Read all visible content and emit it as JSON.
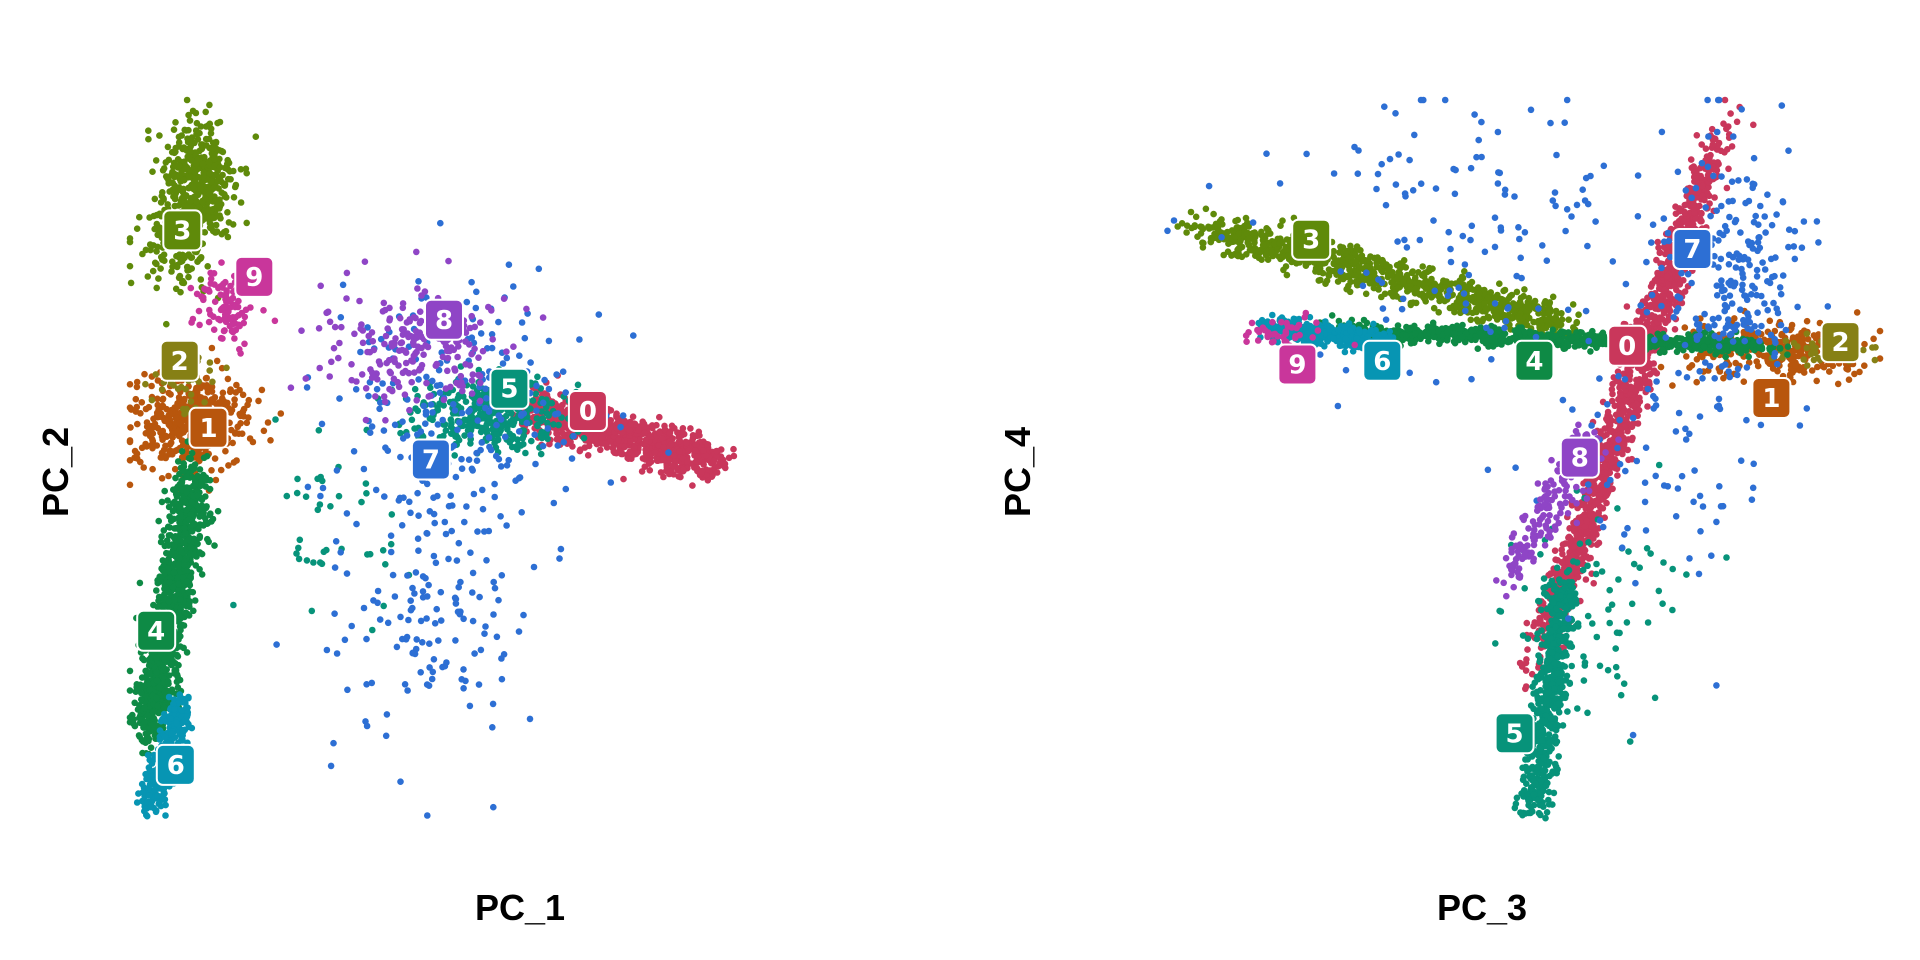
{
  "chart_data": [
    {
      "type": "scatter",
      "title": "",
      "xlabel": "PC_1",
      "ylabel": "PC_2",
      "xlim": [
        -20,
        40
      ],
      "ylim": [
        -20,
        20
      ],
      "grid": false,
      "legend": "none",
      "series": [
        {
          "cluster": "0",
          "color": "#C9375B",
          "label_at": [
            15.0,
            3.3
          ],
          "clouds": [
            {
              "x0": 10.8,
              "y0": 3.3,
              "x1": 25.0,
              "y1": 0.5,
              "w": 1.2,
              "n": 900
            }
          ]
        },
        {
          "cluster": "1",
          "color": "#B8560D",
          "label_at": [
            -14.0,
            2.4
          ],
          "clouds": [
            {
              "cx": -15.2,
              "cy": 2.7,
              "sx": 2.2,
              "sy": 1.2,
              "n": 450
            }
          ]
        },
        {
          "cluster": "2",
          "color": "#868015",
          "label_at": [
            -16.2,
            6.0
          ],
          "clouds": [
            {
              "cx": -15.6,
              "cy": 5.2,
              "sx": 1.2,
              "sy": 1.0,
              "n": 40
            }
          ]
        },
        {
          "cluster": "3",
          "color": "#5F8A0A",
          "label_at": [
            -16.0,
            13.0
          ],
          "clouds": [
            {
              "cx": -14.8,
              "cy": 15.5,
              "sx": 1.4,
              "sy": 1.8,
              "n": 400
            },
            {
              "cx": -16.5,
              "cy": 12.5,
              "sx": 1.5,
              "sy": 1.4,
              "n": 150
            }
          ]
        },
        {
          "cluster": "4",
          "color": "#0E8A45",
          "label_at": [
            -18.0,
            -8.5
          ],
          "clouds": [
            {
              "x0": -15.0,
              "y0": 0.0,
              "x1": -18.5,
              "y1": -14.0,
              "w": 1.5,
              "n": 1000
            }
          ]
        },
        {
          "cluster": "5",
          "color": "#07937A",
          "label_at": [
            9.0,
            4.5
          ],
          "clouds": [
            {
              "cx": 7.5,
              "cy": 3.2,
              "sx": 3.0,
              "sy": 0.9,
              "n": 350
            },
            {
              "cx": -4.0,
              "cy": -3.5,
              "sx": 3.0,
              "sy": 3.0,
              "n": 40
            }
          ]
        },
        {
          "cluster": "6",
          "color": "#0795B3",
          "label_at": [
            -16.5,
            -15.7
          ],
          "clouds": [
            {
              "x0": -16.0,
              "y0": -12.5,
              "x1": -18.5,
              "y1": -18.0,
              "w": 1.0,
              "n": 350
            }
          ]
        },
        {
          "cluster": "7",
          "color": "#2D6FD4",
          "label_at": [
            3.0,
            0.7
          ],
          "clouds": [
            {
              "cx": 5.5,
              "cy": 3.5,
              "sx": 5.0,
              "sy": 3.2,
              "n": 220
            },
            {
              "cx": 3.0,
              "cy": -6.5,
              "sx": 4.0,
              "sy": 4.0,
              "n": 160
            }
          ]
        },
        {
          "cluster": "8",
          "color": "#8F45C6",
          "label_at": [
            4.0,
            8.2
          ],
          "clouds": [
            {
              "cx": 1.5,
              "cy": 6.8,
              "sx": 3.5,
              "sy": 1.6,
              "n": 220
            }
          ]
        },
        {
          "cluster": "9",
          "color": "#C9369B",
          "label_at": [
            -10.5,
            10.5
          ],
          "clouds": [
            {
              "cx": -12.5,
              "cy": 9.0,
              "sx": 1.2,
              "sy": 1.0,
              "n": 110
            }
          ]
        }
      ]
    },
    {
      "type": "scatter",
      "title": "",
      "xlabel": "PC_3",
      "ylabel": "PC_4",
      "xlim": [
        -20,
        20
      ],
      "ylim": [
        -20,
        20
      ],
      "grid": false,
      "legend": "none",
      "series": [
        {
          "cluster": "0",
          "color": "#C9375B",
          "label_at": [
            7.2,
            6.8
          ],
          "clouds": [
            {
              "x0": 3.0,
              "y0": -9.0,
              "x1": 11.5,
              "y1": 17.0,
              "w": 0.9,
              "n": 1300
            }
          ]
        },
        {
          "cluster": "1",
          "color": "#B8560D",
          "label_at": [
            14.5,
            4.0
          ],
          "clouds": [
            {
              "cx": 15.0,
              "cy": 6.5,
              "sx": 2.2,
              "sy": 0.8,
              "n": 260
            }
          ]
        },
        {
          "cluster": "2",
          "color": "#868015",
          "label_at": [
            18.0,
            7.0
          ],
          "clouds": [
            {
              "cx": 17.5,
              "cy": 6.6,
              "sx": 1.4,
              "sy": 0.5,
              "n": 40
            }
          ]
        },
        {
          "cluster": "3",
          "color": "#5F8A0A",
          "label_at": [
            -8.8,
            12.5
          ],
          "clouds": [
            {
              "x0": -14.0,
              "y0": 13.0,
              "x1": 4.0,
              "y1": 8.0,
              "w": 1.0,
              "n": 900
            }
          ]
        },
        {
          "cluster": "4",
          "color": "#0E8A45",
          "label_at": [
            2.5,
            6.0
          ],
          "clouds": [
            {
              "x0": -8.0,
              "y0": 7.6,
              "x1": 14.0,
              "y1": 6.8,
              "w": 0.45,
              "n": 800
            }
          ]
        },
        {
          "cluster": "5",
          "color": "#07937A",
          "label_at": [
            1.5,
            -14.0
          ],
          "clouds": [
            {
              "x0": 4.0,
              "y0": -6.0,
              "x1": 2.5,
              "y1": -18.0,
              "w": 0.9,
              "n": 600
            },
            {
              "cx": 5.5,
              "cy": -7.0,
              "sx": 2.5,
              "sy": 3.0,
              "n": 80
            }
          ]
        },
        {
          "cluster": "6",
          "color": "#0795B3",
          "label_at": [
            -5.2,
            6.0
          ],
          "clouds": [
            {
              "x0": -11.0,
              "y0": 7.8,
              "x1": -5.0,
              "y1": 7.0,
              "w": 0.6,
              "n": 400
            }
          ]
        },
        {
          "cluster": "7",
          "color": "#2D6FD4",
          "label_at": [
            10.5,
            12.0
          ],
          "clouds": [
            {
              "cx": 12.5,
              "cy": 10.5,
              "sx": 1.8,
              "sy": 3.5,
              "n": 220
            },
            {
              "cx": 0.0,
              "cy": 12.5,
              "sx": 5.0,
              "sy": 4.0,
              "n": 150
            },
            {
              "cx": 8.5,
              "cy": 0.0,
              "sx": 3.0,
              "sy": 5.0,
              "n": 80
            }
          ]
        },
        {
          "cluster": "8",
          "color": "#8F45C6",
          "label_at": [
            4.8,
            0.8
          ],
          "clouds": [
            {
              "x0": 5.5,
              "y0": 2.0,
              "x1": 1.0,
              "y1": -6.0,
              "w": 1.0,
              "n": 180
            }
          ]
        },
        {
          "cluster": "9",
          "color": "#C9369B",
          "label_at": [
            -9.5,
            5.8
          ],
          "clouds": [
            {
              "cx": -10.5,
              "cy": 7.5,
              "sx": 1.0,
              "sy": 0.4,
              "n": 40
            }
          ]
        }
      ]
    }
  ]
}
